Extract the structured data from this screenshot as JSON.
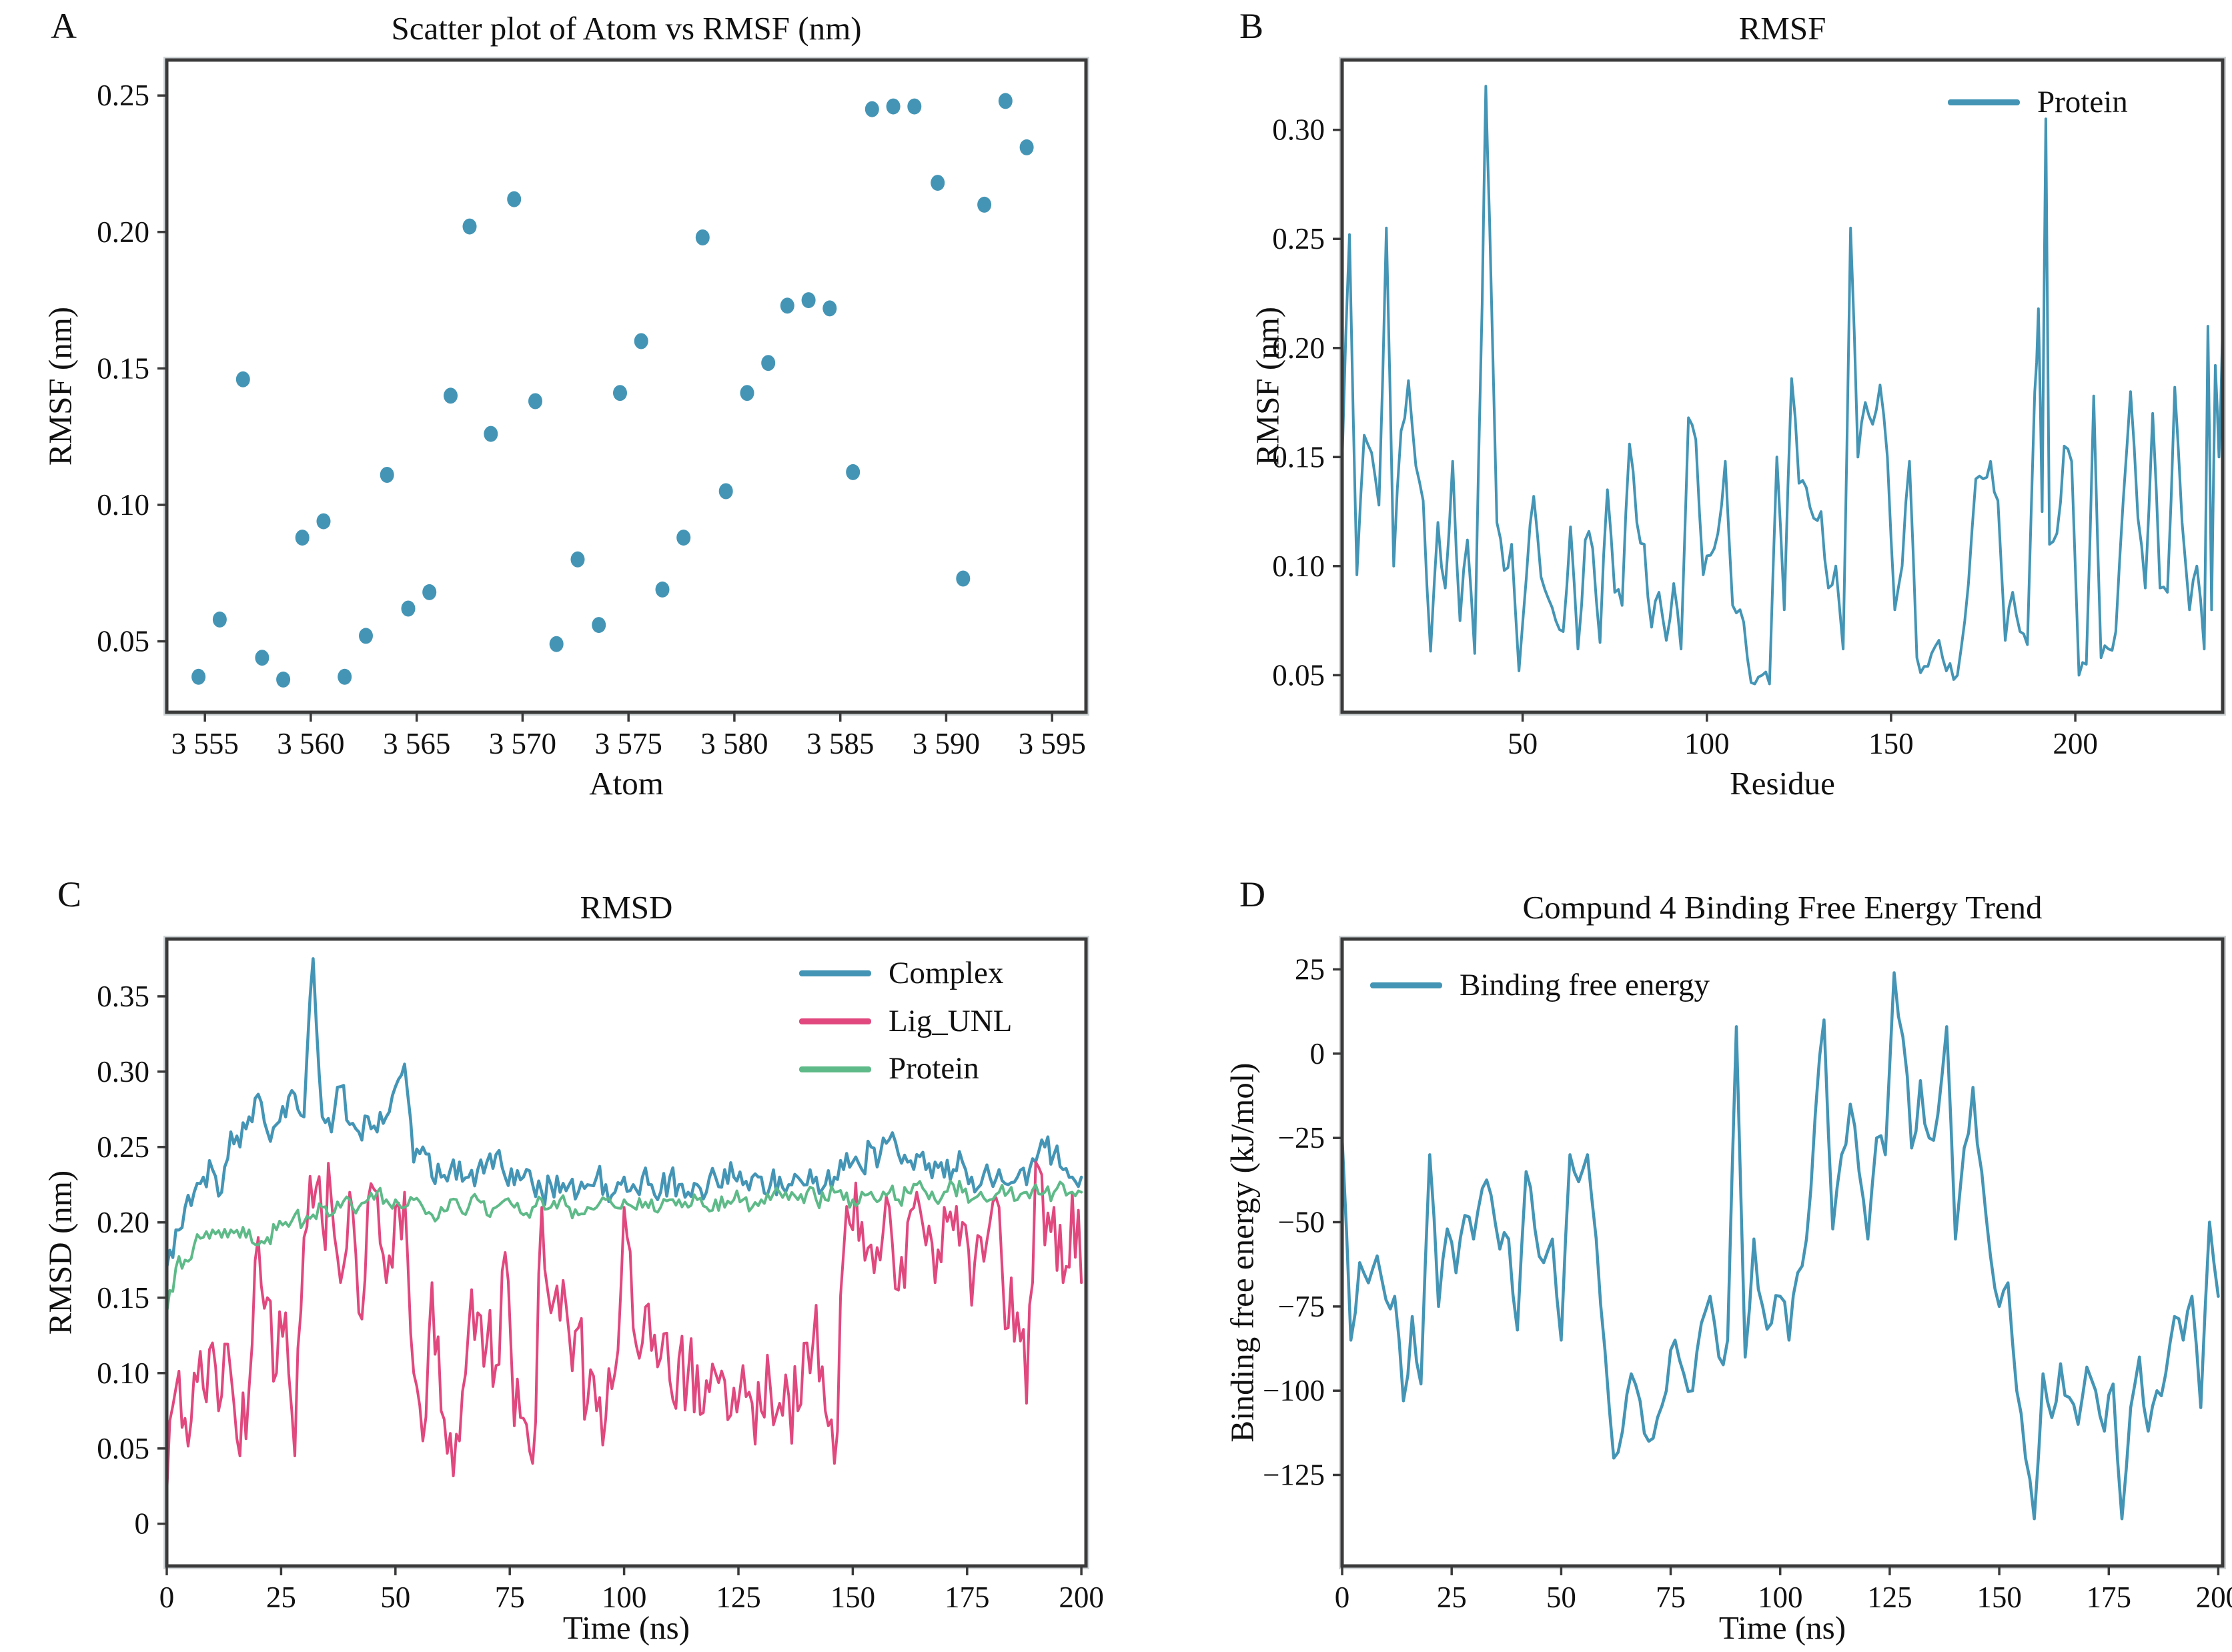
{
  "page": {
    "background": "#ffffff"
  },
  "colors": {
    "blue": "#4495b5",
    "pink": "#e0487e",
    "green": "#5eba88",
    "frame": "#3a3a3a",
    "text": "#111111",
    "halo": "#cfd4d6"
  },
  "panels": [
    {
      "letter": "A",
      "title": "Scatter plot of Atom vs RMSF (nm)",
      "xlabel": "Atom",
      "ylabel": "RMSF (nm)",
      "legend": []
    },
    {
      "letter": "B",
      "title": "RMSF",
      "xlabel": "Residue",
      "ylabel": "RMSF (nm)",
      "legend": [
        "Protein"
      ]
    },
    {
      "letter": "C",
      "title": "RMSD",
      "xlabel": "Time (ns)",
      "ylabel": "RMSD (nm)",
      "legend": [
        "Complex",
        "Lig_UNL",
        "Protein"
      ]
    },
    {
      "letter": "D",
      "title": "Compund 4 Binding Free Energy Trend",
      "xlabel": "Time (ns)",
      "ylabel": "Binding free energy (kJ/mol)",
      "legend": [
        "Binding free energy"
      ]
    }
  ],
  "chart_data": [
    {
      "type": "scatter",
      "title": "Scatter plot of Atom vs RMSF (nm)",
      "xlabel": "Atom",
      "ylabel": "RMSF (nm)",
      "xlim": [
        3553.2,
        3596.6
      ],
      "ylim": [
        0.024,
        0.263
      ],
      "xticks": [
        3555,
        3560,
        3565,
        3570,
        3575,
        3580,
        3585,
        3590,
        3595
      ],
      "xtick_labels": [
        "3 555",
        "3 560",
        "3 565",
        "3 570",
        "3 575",
        "3 580",
        "3 585",
        "3 590",
        "3 595"
      ],
      "yticks": [
        0.05,
        0.1,
        0.15,
        0.2,
        0.25
      ],
      "ytick_labels": [
        "0.05",
        "0.10",
        "0.15",
        "0.20",
        "0.25"
      ],
      "grid": false,
      "legend_position": "none",
      "series": [
        {
          "name": "RMSF",
          "color": "blue",
          "x": [
            3554.7,
            3555.7,
            3556.8,
            3557.7,
            3558.7,
            3559.6,
            3560.6,
            3561.6,
            3562.6,
            3563.6,
            3564.6,
            3565.6,
            3566.6,
            3567.5,
            3568.5,
            3569.6,
            3570.6,
            3571.6,
            3572.6,
            3573.6,
            3574.6,
            3575.6,
            3576.6,
            3577.6,
            3578.5,
            3579.6,
            3580.6,
            3581.6,
            3582.5,
            3583.5,
            3584.5,
            3585.6,
            3586.5,
            3587.5,
            3588.5,
            3589.6,
            3590.8,
            3591.8,
            3592.8,
            3593.8
          ],
          "y": [
            0.037,
            0.058,
            0.146,
            0.044,
            0.036,
            0.088,
            0.094,
            0.037,
            0.052,
            0.111,
            0.062,
            0.068,
            0.14,
            0.202,
            0.126,
            0.212,
            0.138,
            0.049,
            0.08,
            0.056,
            0.141,
            0.16,
            0.069,
            0.088,
            0.198,
            0.105,
            0.141,
            0.152,
            0.173,
            0.175,
            0.172,
            0.112,
            0.245,
            0.246,
            0.246,
            0.218,
            0.073,
            0.21,
            0.248,
            0.231
          ]
        }
      ]
    },
    {
      "type": "line",
      "title": "RMSF",
      "xlabel": "Residue",
      "ylabel": "RMSF (nm)",
      "xlim": [
        1,
        240
      ],
      "ylim": [
        0.033,
        0.332
      ],
      "xticks": [
        50,
        100,
        150,
        200
      ],
      "xtick_labels": [
        "50",
        "100",
        "150",
        "200"
      ],
      "yticks": [
        0.05,
        0.1,
        0.15,
        0.2,
        0.25,
        0.3
      ],
      "ytick_labels": [
        "0.05",
        "0.10",
        "0.15",
        "0.20",
        "0.25",
        "0.30"
      ],
      "grid": false,
      "legend_position": "top-right",
      "series": [
        {
          "name": "Protein",
          "color": "blue",
          "noise": 0.006,
          "seed": 7,
          "sub": 2,
          "width": 4,
          "x": [
            1,
            3,
            5,
            7,
            9,
            11,
            13,
            15,
            17,
            19,
            21,
            23,
            25,
            27,
            29,
            31,
            33,
            35,
            37,
            39,
            40,
            41,
            43,
            45,
            47,
            49,
            51,
            53,
            55,
            57,
            59,
            61,
            63,
            65,
            67,
            69,
            71,
            73,
            75,
            77,
            79,
            81,
            83,
            85,
            87,
            89,
            91,
            93,
            95,
            97,
            99,
            101,
            103,
            105,
            107,
            109,
            111,
            113,
            115,
            117,
            119,
            121,
            123,
            125,
            127,
            129,
            131,
            133,
            135,
            137,
            139,
            141,
            143,
            145,
            147,
            149,
            151,
            153,
            155,
            157,
            159,
            161,
            163,
            165,
            167,
            169,
            171,
            173,
            175,
            177,
            179,
            181,
            183,
            185,
            187,
            189,
            190,
            191,
            192,
            193,
            195,
            197,
            199,
            201,
            203,
            205,
            207,
            209,
            211,
            213,
            215,
            217,
            219,
            221,
            223,
            225,
            227,
            229,
            231,
            233,
            235,
            236,
            237,
            238,
            239,
            240
          ],
          "y": [
            0.148,
            0.252,
            0.096,
            0.16,
            0.152,
            0.128,
            0.255,
            0.1,
            0.162,
            0.185,
            0.146,
            0.13,
            0.061,
            0.12,
            0.09,
            0.148,
            0.075,
            0.112,
            0.06,
            0.22,
            0.32,
            0.26,
            0.12,
            0.098,
            0.11,
            0.052,
            0.095,
            0.132,
            0.095,
            0.085,
            0.075,
            0.07,
            0.118,
            0.062,
            0.112,
            0.108,
            0.065,
            0.135,
            0.088,
            0.082,
            0.156,
            0.12,
            0.11,
            0.072,
            0.088,
            0.066,
            0.092,
            0.062,
            0.168,
            0.158,
            0.096,
            0.105,
            0.115,
            0.148,
            0.082,
            0.08,
            0.058,
            0.046,
            0.05,
            0.046,
            0.15,
            0.08,
            0.186,
            0.138,
            0.136,
            0.122,
            0.125,
            0.09,
            0.1,
            0.062,
            0.255,
            0.15,
            0.175,
            0.165,
            0.183,
            0.15,
            0.08,
            0.1,
            0.148,
            0.058,
            0.054,
            0.06,
            0.066,
            0.052,
            0.048,
            0.062,
            0.092,
            0.14,
            0.14,
            0.148,
            0.13,
            0.066,
            0.088,
            0.07,
            0.064,
            0.18,
            0.218,
            0.125,
            0.305,
            0.11,
            0.115,
            0.155,
            0.148,
            0.05,
            0.055,
            0.178,
            0.058,
            0.062,
            0.07,
            0.13,
            0.18,
            0.122,
            0.09,
            0.17,
            0.09,
            0.088,
            0.182,
            0.12,
            0.08,
            0.1,
            0.062,
            0.21,
            0.08,
            0.192,
            0.15,
            0.21
          ]
        }
      ]
    },
    {
      "type": "line",
      "title": "RMSD",
      "xlabel": "Time (ns)",
      "ylabel": "RMSD (nm)",
      "xlim": [
        0,
        201
      ],
      "ylim": [
        -0.028,
        0.388
      ],
      "xticks": [
        0,
        25,
        50,
        75,
        100,
        125,
        150,
        175,
        200
      ],
      "xtick_labels": [
        "0",
        "25",
        "50",
        "75",
        "100",
        "125",
        "150",
        "175",
        "200"
      ],
      "yticks": [
        0,
        0.05,
        0.1,
        0.15,
        0.2,
        0.25,
        0.3,
        0.35
      ],
      "ytick_labels": [
        "0",
        "0.05",
        "0.10",
        "0.15",
        "0.20",
        "0.25",
        "0.30",
        "0.35"
      ],
      "grid": false,
      "legend_position": "top-right",
      "x_start": 0,
      "x_step": 2,
      "series": [
        {
          "name": "Complex",
          "color": "blue",
          "noise": 0.01,
          "seed": 11,
          "sub": 3,
          "width": 4.5,
          "y": [
            0.17,
            0.195,
            0.21,
            0.22,
            0.23,
            0.235,
            0.22,
            0.26,
            0.25,
            0.27,
            0.285,
            0.26,
            0.265,
            0.27,
            0.285,
            0.27,
            0.375,
            0.27,
            0.26,
            0.29,
            0.265,
            0.26,
            0.27,
            0.26,
            0.27,
            0.29,
            0.305,
            0.24,
            0.25,
            0.23,
            0.23,
            0.235,
            0.24,
            0.23,
            0.235,
            0.24,
            0.245,
            0.23,
            0.225,
            0.23,
            0.225,
            0.22,
            0.225,
            0.22,
            0.225,
            0.22,
            0.225,
            0.23,
            0.225,
            0.22,
            0.23,
            0.225,
            0.23,
            0.225,
            0.22,
            0.23,
            0.225,
            0.22,
            0.225,
            0.22,
            0.23,
            0.235,
            0.23,
            0.225,
            0.23,
            0.23,
            0.225,
            0.23,
            0.225,
            0.23,
            0.225,
            0.23,
            0.225,
            0.23,
            0.235,
            0.24,
            0.235,
            0.25,
            0.245,
            0.255,
            0.245,
            0.24,
            0.245,
            0.235,
            0.24,
            0.23,
            0.235,
            0.24,
            0.23,
            0.225,
            0.23,
            0.235,
            0.225,
            0.23,
            0.225,
            0.24,
            0.25,
            0.245,
            0.235,
            0.23,
            0.23
          ]
        },
        {
          "name": "Lig_UNL",
          "color": "pink",
          "noise": 0.03,
          "seed": 23,
          "sub": 3,
          "width": 4,
          "y": [
            0.02,
            0.09,
            0.07,
            0.1,
            0.09,
            0.12,
            0.085,
            0.1,
            0.045,
            0.09,
            0.19,
            0.15,
            0.1,
            0.14,
            0.045,
            0.19,
            0.21,
            0.2,
            0.215,
            0.16,
            0.22,
            0.14,
            0.215,
            0.22,
            0.16,
            0.21,
            0.22,
            0.1,
            0.055,
            0.16,
            0.075,
            0.06,
            0.055,
            0.13,
            0.14,
            0.12,
            0.105,
            0.18,
            0.065,
            0.07,
            0.04,
            0.21,
            0.14,
            0.135,
            0.125,
            0.13,
            0.08,
            0.075,
            0.07,
            0.1,
            0.21,
            0.13,
            0.12,
            0.115,
            0.11,
            0.095,
            0.11,
            0.1,
            0.105,
            0.095,
            0.1,
            0.095,
            0.09,
            0.105,
            0.08,
            0.075,
            0.09,
            0.08,
            0.085,
            0.075,
            0.12,
            0.145,
            0.075,
            0.04,
            0.18,
            0.195,
            0.2,
            0.185,
            0.175,
            0.21,
            0.155,
            0.2,
            0.22,
            0.185,
            0.16,
            0.21,
            0.195,
            0.2,
            0.145,
            0.19,
            0.2,
            0.21,
            0.13,
            0.14,
            0.08,
            0.24,
            0.185,
            0.21,
            0.16,
            0.22,
            0.16
          ]
        },
        {
          "name": "Protein",
          "color": "green",
          "noise": 0.006,
          "seed": 5,
          "sub": 3,
          "width": 4,
          "y": [
            0.14,
            0.17,
            0.175,
            0.185,
            0.19,
            0.195,
            0.19,
            0.195,
            0.19,
            0.195,
            0.185,
            0.19,
            0.195,
            0.2,
            0.205,
            0.2,
            0.205,
            0.21,
            0.205,
            0.21,
            0.215,
            0.21,
            0.215,
            0.22,
            0.215,
            0.215,
            0.21,
            0.215,
            0.21,
            0.205,
            0.21,
            0.215,
            0.21,
            0.21,
            0.215,
            0.205,
            0.21,
            0.215,
            0.21,
            0.205,
            0.21,
            0.215,
            0.21,
            0.215,
            0.21,
            0.205,
            0.21,
            0.21,
            0.215,
            0.21,
            0.215,
            0.21,
            0.21,
            0.215,
            0.21,
            0.215,
            0.215,
            0.21,
            0.215,
            0.21,
            0.215,
            0.21,
            0.215,
            0.215,
            0.21,
            0.215,
            0.215,
            0.22,
            0.215,
            0.215,
            0.22,
            0.215,
            0.215,
            0.22,
            0.215,
            0.215,
            0.22,
            0.22,
            0.215,
            0.22,
            0.215,
            0.22,
            0.225,
            0.22,
            0.215,
            0.22,
            0.225,
            0.22,
            0.215,
            0.22,
            0.215,
            0.22,
            0.22,
            0.215,
            0.22,
            0.225,
            0.22,
            0.22,
            0.225,
            0.22,
            0.22
          ]
        }
      ]
    },
    {
      "type": "line",
      "title": "Compund 4 Binding Free Energy Trend",
      "xlabel": "Time (ns)",
      "ylabel": "Binding free energy (kJ/mol)",
      "xlim": [
        0,
        201
      ],
      "ylim": [
        -152,
        34
      ],
      "xticks": [
        0,
        25,
        50,
        75,
        100,
        125,
        150,
        175,
        200
      ],
      "xtick_labels": [
        "0",
        "25",
        "50",
        "75",
        "100",
        "125",
        "150",
        "175",
        "200"
      ],
      "yticks": [
        25,
        0,
        -25,
        -50,
        -75,
        -100,
        -125
      ],
      "ytick_labels": [
        "25",
        "0",
        "−25",
        "−50",
        "−75",
        "−100",
        "−125"
      ],
      "grid": false,
      "legend_position": "top-left",
      "x_start": 0,
      "x_step": 2,
      "series": [
        {
          "name": "Binding free energy",
          "color": "blue",
          "noise": 5,
          "seed": 13,
          "sub": 2,
          "width": 4.5,
          "y": [
            -25,
            -85,
            -62,
            -68,
            -60,
            -73,
            -72,
            -103,
            -78,
            -98,
            -30,
            -75,
            -52,
            -65,
            -48,
            -55,
            -40,
            -42,
            -58,
            -55,
            -82,
            -35,
            -52,
            -62,
            -55,
            -85,
            -30,
            -38,
            -30,
            -55,
            -88,
            -120,
            -112,
            -95,
            -103,
            -115,
            -108,
            -100,
            -85,
            -95,
            -100,
            -80,
            -72,
            -90,
            -85,
            8,
            -90,
            -55,
            -75,
            -80,
            -72,
            -85,
            -65,
            -55,
            -18,
            10,
            -52,
            -30,
            -15,
            -35,
            -55,
            -25,
            -30,
            24,
            5,
            -28,
            -8,
            -25,
            -18,
            8,
            -55,
            -28,
            -10,
            -35,
            -60,
            -75,
            -68,
            -100,
            -120,
            -138,
            -95,
            -108,
            -92,
            -102,
            -110,
            -93,
            -100,
            -112,
            -98,
            -138,
            -105,
            -90,
            -112,
            -100,
            -95,
            -78,
            -85,
            -72,
            -105,
            -50,
            -72
          ]
        }
      ]
    }
  ]
}
